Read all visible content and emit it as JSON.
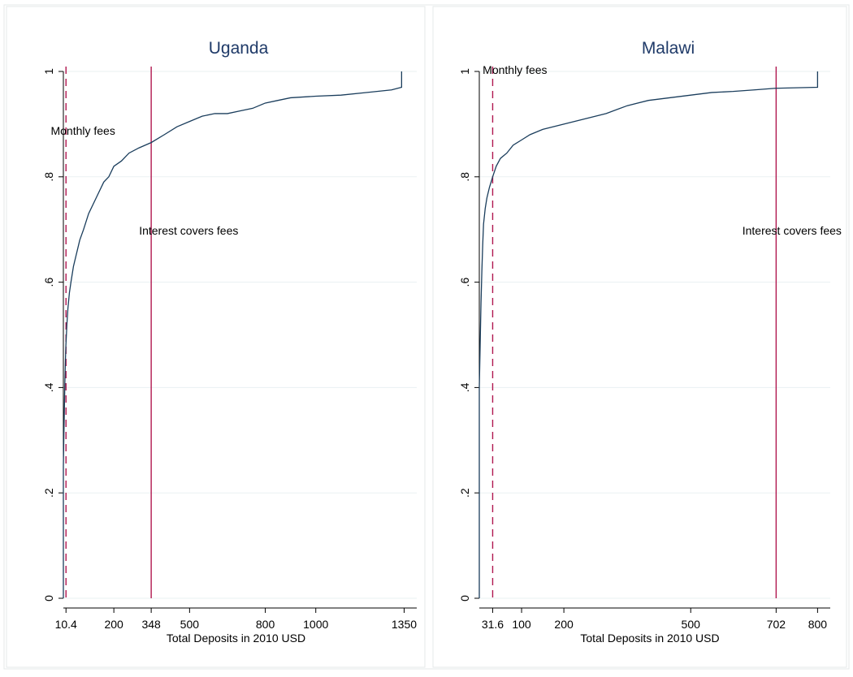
{
  "chart_data": [
    {
      "type": "line",
      "title": "Uganda",
      "xlabel": "Total Deposits in 2010 USD",
      "ylabel": "",
      "xlim": [
        0,
        1400
      ],
      "ylim": [
        0,
        1
      ],
      "x_ticks": [
        10.4,
        200,
        348,
        500,
        800,
        1000,
        1350
      ],
      "x_tick_labels": [
        "10.4",
        "200",
        "348",
        "500",
        "800",
        "1000",
        "1350"
      ],
      "y_ticks": [
        0,
        0.2,
        0.4,
        0.6,
        0.8,
        1
      ],
      "y_tick_labels": [
        "0",
        ".2",
        ".4",
        ".6",
        ".8",
        "1"
      ],
      "grid": true,
      "series": [
        {
          "x": [
            0,
            0,
            2,
            4,
            6,
            8,
            10,
            14,
            18,
            24,
            30,
            40,
            50,
            65,
            80,
            100,
            120,
            140,
            160,
            180,
            200,
            230,
            260,
            300,
            348,
            400,
            450,
            500,
            550,
            600,
            650,
            700,
            750,
            800,
            850,
            900,
            1000,
            1100,
            1200,
            1300,
            1340,
            1340
          ],
          "y": [
            0,
            0.25,
            0.31,
            0.36,
            0.41,
            0.45,
            0.48,
            0.52,
            0.55,
            0.58,
            0.6,
            0.63,
            0.65,
            0.68,
            0.7,
            0.73,
            0.75,
            0.77,
            0.79,
            0.8,
            0.82,
            0.83,
            0.845,
            0.855,
            0.865,
            0.88,
            0.895,
            0.905,
            0.915,
            0.92,
            0.92,
            0.925,
            0.93,
            0.94,
            0.945,
            0.95,
            0.953,
            0.955,
            0.96,
            0.965,
            0.97,
            1.0
          ]
        }
      ],
      "vlines": [
        {
          "x": 10.4,
          "style": "dashed"
        },
        {
          "x": 348,
          "style": "solid"
        }
      ],
      "annotations": [
        {
          "text": "Monthly fees",
          "x": -50,
          "y": 0.88
        },
        {
          "text": "Interest covers fees",
          "x": 300,
          "y": 0.69
        }
      ]
    },
    {
      "type": "line",
      "title": "Malawi",
      "xlabel": "Total Deposits in 2010 USD",
      "ylabel": "",
      "xlim": [
        0,
        830
      ],
      "ylim": [
        0,
        1
      ],
      "x_ticks": [
        31.6,
        100,
        200,
        500,
        702,
        800
      ],
      "x_tick_labels": [
        "31.6",
        "100",
        "200",
        "500",
        "702",
        "800"
      ],
      "y_ticks": [
        0,
        0.2,
        0.4,
        0.6,
        0.8,
        1
      ],
      "y_tick_labels": [
        "0",
        ".2",
        ".4",
        ".6",
        ".8",
        "1"
      ],
      "grid": true,
      "series": [
        {
          "x": [
            0,
            0,
            2,
            4,
            6,
            8,
            10,
            14,
            18,
            24,
            31.6,
            40,
            50,
            65,
            80,
            100,
            120,
            150,
            200,
            250,
            300,
            350,
            400,
            450,
            500,
            550,
            600,
            650,
            700,
            750,
            800,
            800
          ],
          "y": [
            0,
            0.4,
            0.48,
            0.56,
            0.62,
            0.67,
            0.71,
            0.74,
            0.76,
            0.78,
            0.8,
            0.82,
            0.835,
            0.845,
            0.86,
            0.87,
            0.88,
            0.89,
            0.9,
            0.91,
            0.92,
            0.935,
            0.945,
            0.95,
            0.955,
            0.96,
            0.962,
            0.965,
            0.968,
            0.969,
            0.97,
            1.0
          ]
        }
      ],
      "vlines": [
        {
          "x": 31.6,
          "style": "dashed"
        },
        {
          "x": 702,
          "style": "solid"
        }
      ],
      "annotations": [
        {
          "text": "Monthly fees",
          "x": 8,
          "y": 0.995
        },
        {
          "text": "Interest covers fees",
          "x": 622,
          "y": 0.69
        }
      ]
    }
  ],
  "colors": {
    "curve": "#1a3d5c",
    "vline": "#b0174f",
    "grid": "#eaf0f2",
    "panel_border": "#e4e8ea",
    "title": "#1f3a68"
  }
}
